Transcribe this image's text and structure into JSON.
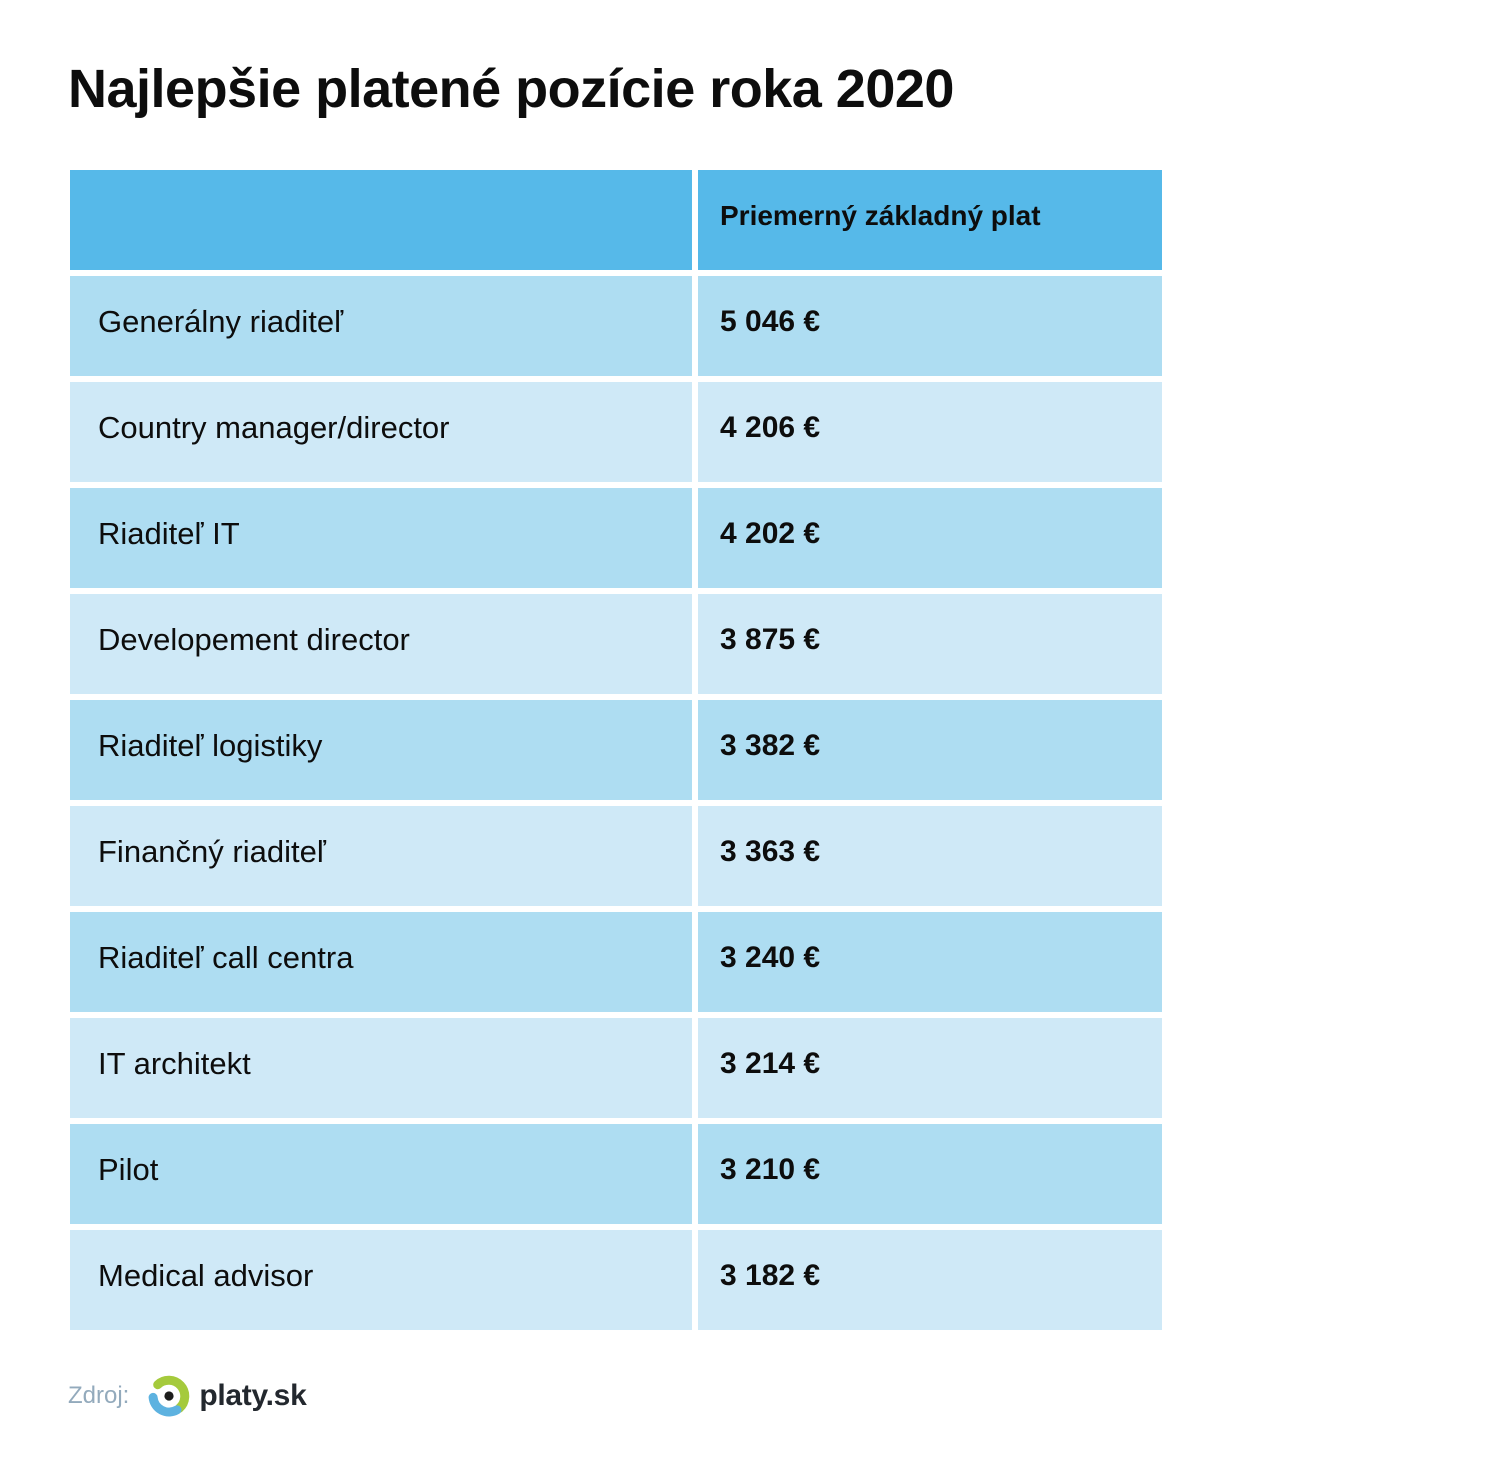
{
  "title": "Najlepšie platené pozície roka 2020",
  "table": {
    "header": "Priemerný základný plat",
    "rows": [
      {
        "label": "Generálny riaditeľ",
        "value": "5 046 €"
      },
      {
        "label": "Country manager/director",
        "value": "4 206 €"
      },
      {
        "label": "Riaditeľ IT",
        "value": "4 202 €"
      },
      {
        "label": "Developement director",
        "value": "3 875 €"
      },
      {
        "label": "Riaditeľ logistiky",
        "value": "3 382 €"
      },
      {
        "label": "Finančný riaditeľ",
        "value": "3 363 €"
      },
      {
        "label": "Riaditeľ call centra",
        "value": "3 240 €"
      },
      {
        "label": "IT architekt",
        "value": "3 214 €"
      },
      {
        "label": "Pilot",
        "value": "3 210 €"
      },
      {
        "label": "Medical advisor",
        "value": "3 182 €"
      }
    ]
  },
  "footer": {
    "source_label": "Zdroj:",
    "logo_text": "platy.sk",
    "logo_icon": "platy-ring-icon"
  },
  "colors": {
    "headerBlue": "#56b9e9",
    "rowDark": "#aeddf2",
    "rowLight": "#cfe9f7",
    "titleText": "#0d0d0d",
    "sourceGray": "#93aabc",
    "logoGreen": "#a5ca3c",
    "logoBlue": "#5db2e0",
    "logoDot": "#1d1d1b",
    "logoText": "#23282e"
  },
  "chart_data": {
    "type": "table",
    "title": "Najlepšie platené pozície roka 2020",
    "columns": [
      "",
      "Priemerný základný plat"
    ],
    "categories": [
      "Generálny riaditeľ",
      "Country manager/director",
      "Riaditeľ IT",
      "Developement director",
      "Riaditeľ logistiky",
      "Finančný riaditeľ",
      "Riaditeľ call centra",
      "IT architekt",
      "Pilot",
      "Medical advisor"
    ],
    "values": [
      5046,
      4206,
      4202,
      3875,
      3382,
      3363,
      3240,
      3214,
      3210,
      3182
    ],
    "unit": "€",
    "source": "platy.sk"
  }
}
